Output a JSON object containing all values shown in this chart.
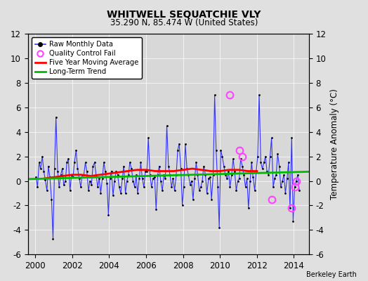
{
  "title": "WHITWELL SEQUATCHIE VLY",
  "subtitle": "35.290 N, 85.474 W (United States)",
  "ylabel": "Temperature Anomaly (°C)",
  "credit": "Berkeley Earth",
  "xlim": [
    1999.6,
    2014.8
  ],
  "ylim": [
    -6,
    12
  ],
  "yticks": [
    -6,
    -4,
    -2,
    0,
    2,
    4,
    6,
    8,
    10,
    12
  ],
  "xticks": [
    2000,
    2002,
    2004,
    2006,
    2008,
    2010,
    2012,
    2014
  ],
  "bg_color": "#e0e0e0",
  "plot_bg": "#d8d8d8",
  "raw_color": "#3333ff",
  "ma_color": "#ff0000",
  "trend_color": "#00bb00",
  "qc_color": "#ff44ff",
  "raw_data_x": [
    2000.04,
    2000.12,
    2000.21,
    2000.29,
    2000.38,
    2000.46,
    2000.54,
    2000.63,
    2000.71,
    2000.79,
    2000.88,
    2000.96,
    2001.04,
    2001.12,
    2001.21,
    2001.29,
    2001.38,
    2001.46,
    2001.54,
    2001.63,
    2001.71,
    2001.79,
    2001.88,
    2001.96,
    2002.04,
    2002.12,
    2002.21,
    2002.29,
    2002.38,
    2002.46,
    2002.54,
    2002.63,
    2002.71,
    2002.79,
    2002.88,
    2002.96,
    2003.04,
    2003.12,
    2003.21,
    2003.29,
    2003.38,
    2003.46,
    2003.54,
    2003.63,
    2003.71,
    2003.79,
    2003.88,
    2003.96,
    2004.04,
    2004.12,
    2004.21,
    2004.29,
    2004.38,
    2004.46,
    2004.54,
    2004.63,
    2004.71,
    2004.79,
    2004.88,
    2004.96,
    2005.04,
    2005.12,
    2005.21,
    2005.29,
    2005.38,
    2005.46,
    2005.54,
    2005.63,
    2005.71,
    2005.79,
    2005.88,
    2005.96,
    2006.04,
    2006.12,
    2006.21,
    2006.29,
    2006.38,
    2006.46,
    2006.54,
    2006.63,
    2006.71,
    2006.79,
    2006.88,
    2006.96,
    2007.04,
    2007.12,
    2007.21,
    2007.29,
    2007.38,
    2007.46,
    2007.54,
    2007.63,
    2007.71,
    2007.79,
    2007.88,
    2007.96,
    2008.04,
    2008.12,
    2008.21,
    2008.29,
    2008.38,
    2008.46,
    2008.54,
    2008.63,
    2008.71,
    2008.79,
    2008.88,
    2008.96,
    2009.04,
    2009.12,
    2009.21,
    2009.29,
    2009.38,
    2009.46,
    2009.54,
    2009.63,
    2009.71,
    2009.79,
    2009.88,
    2009.96,
    2010.04,
    2010.12,
    2010.21,
    2010.29,
    2010.38,
    2010.46,
    2010.54,
    2010.63,
    2010.71,
    2010.79,
    2010.88,
    2010.96,
    2011.04,
    2011.12,
    2011.21,
    2011.29,
    2011.38,
    2011.46,
    2011.54,
    2011.63,
    2011.71,
    2011.79,
    2011.88,
    2011.96,
    2012.04,
    2012.12,
    2012.21,
    2012.29,
    2012.38,
    2012.46,
    2012.54,
    2012.63,
    2012.71,
    2012.79,
    2012.88,
    2012.96,
    2013.04,
    2013.12,
    2013.21,
    2013.29,
    2013.38,
    2013.46,
    2013.54,
    2013.63,
    2013.71,
    2013.79,
    2013.88,
    2013.96,
    2014.04,
    2014.12,
    2014.21,
    2014.29
  ],
  "raw_data_y": [
    0.3,
    -0.5,
    1.5,
    1.0,
    2.0,
    0.8,
    0.1,
    -0.8,
    1.2,
    0.3,
    -1.5,
    -4.7,
    1.0,
    5.2,
    0.8,
    -0.5,
    0.5,
    1.0,
    -0.3,
    0.0,
    1.5,
    1.8,
    -0.8,
    0.5,
    0.3,
    1.5,
    2.5,
    1.0,
    0.2,
    -0.5,
    0.5,
    0.5,
    1.5,
    0.8,
    -0.8,
    0.0,
    -0.3,
    1.2,
    1.5,
    0.5,
    -0.5,
    0.2,
    -1.0,
    0.2,
    1.5,
    0.8,
    -0.2,
    -2.8,
    0.2,
    0.8,
    -1.2,
    0.0,
    0.8,
    0.5,
    -0.5,
    -1.0,
    0.2,
    1.2,
    -1.0,
    0.0,
    0.5,
    1.5,
    1.0,
    0.0,
    -0.5,
    0.5,
    -1.0,
    0.2,
    1.5,
    0.2,
    -0.5,
    0.8,
    0.8,
    3.5,
    0.5,
    -0.5,
    0.2,
    0.3,
    -2.3,
    0.5,
    1.2,
    0.0,
    -0.8,
    0.5,
    0.2,
    4.5,
    1.2,
    0.5,
    -0.5,
    0.2,
    -0.8,
    0.5,
    2.5,
    3.0,
    1.0,
    -2.0,
    -0.5,
    3.0,
    1.0,
    0.5,
    -0.3,
    0.0,
    -1.5,
    0.2,
    1.5,
    0.5,
    -0.8,
    -0.5,
    0.0,
    1.2,
    0.5,
    -1.0,
    0.2,
    0.3,
    -1.5,
    0.5,
    7.0,
    2.5,
    -0.5,
    -3.8,
    2.5,
    2.0,
    1.2,
    0.5,
    0.2,
    0.8,
    -0.5,
    0.5,
    1.8,
    0.8,
    -0.8,
    0.0,
    0.2,
    1.8,
    1.2,
    0.5,
    -0.5,
    0.2,
    -2.2,
    0.0,
    1.5,
    0.3,
    -0.8,
    0.8,
    2.0,
    7.0,
    1.5,
    1.0,
    1.5,
    2.0,
    0.8,
    0.5,
    2.0,
    3.5,
    -0.5,
    0.2,
    0.5,
    2.2,
    1.2,
    -0.5,
    0.0,
    0.5,
    -1.0,
    0.2,
    1.5,
    -2.2,
    3.5,
    -3.3,
    -0.5,
    0.0,
    0.5,
    -0.8
  ],
  "qc_fail_x": [
    2010.54,
    2011.04,
    2011.21,
    2012.79,
    2013.88,
    2014.04,
    2014.12
  ],
  "qc_fail_y": [
    7.0,
    2.5,
    2.0,
    -1.5,
    -2.2,
    -0.5,
    0.0
  ],
  "moving_avg_x": [
    2000.5,
    2001.0,
    2001.5,
    2002.0,
    2002.5,
    2003.0,
    2003.5,
    2004.0,
    2004.5,
    2005.0,
    2005.5,
    2006.0,
    2006.5,
    2007.0,
    2007.5,
    2008.0,
    2008.5,
    2009.0,
    2009.5,
    2010.0,
    2010.5,
    2011.0,
    2011.5,
    2012.0
  ],
  "moving_avg_y": [
    0.2,
    0.3,
    0.4,
    0.5,
    0.5,
    0.4,
    0.5,
    0.6,
    0.7,
    0.8,
    0.9,
    0.9,
    0.8,
    0.8,
    0.8,
    0.9,
    1.0,
    0.9,
    0.8,
    0.8,
    0.9,
    0.9,
    0.8,
    0.8
  ],
  "trend_x": [
    1999.6,
    2014.8
  ],
  "trend_y": [
    0.15,
    0.75
  ]
}
